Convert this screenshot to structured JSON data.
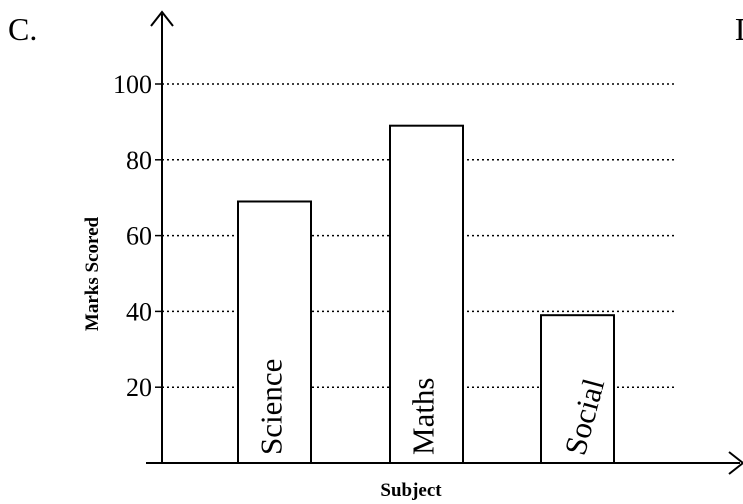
{
  "option_label": "C.",
  "next_option_label": "D",
  "chart_data": {
    "type": "bar",
    "categories": [
      "Science",
      "Maths",
      "Social"
    ],
    "values": [
      69,
      89,
      39
    ],
    "xlabel": "Subject",
    "ylabel": "Marks Scored",
    "yticks": [
      20,
      40,
      60,
      80,
      100
    ],
    "ylim": [
      0,
      110
    ],
    "grid": true,
    "grid_style": "dotted",
    "legend": "none",
    "category_labels_inside_bars": true,
    "bar_fill": "#ffffff",
    "bar_stroke": "#000000"
  }
}
